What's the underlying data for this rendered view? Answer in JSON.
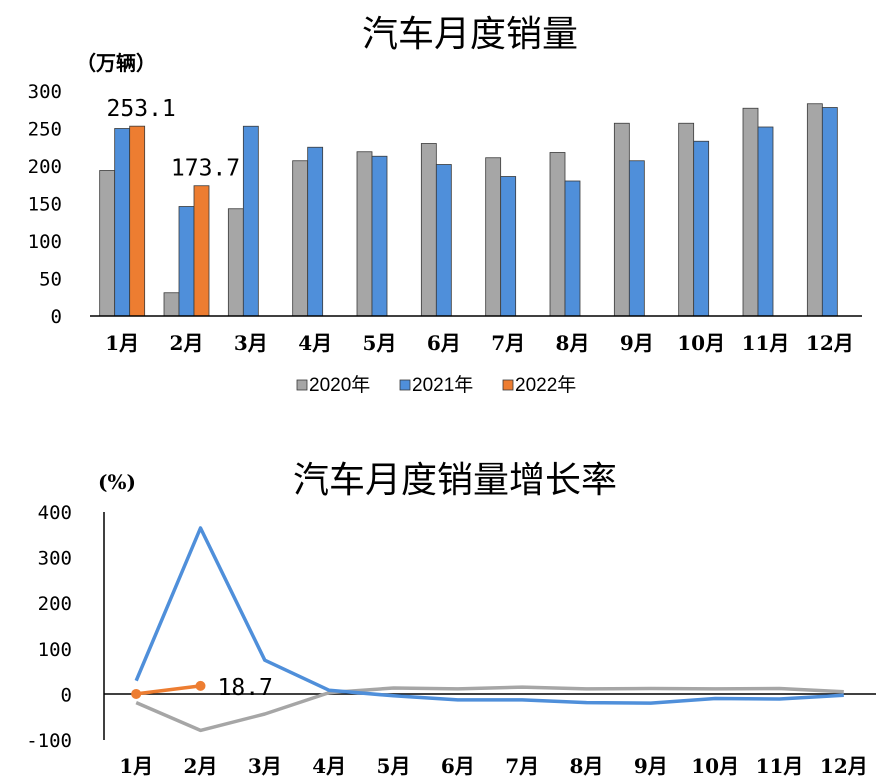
{
  "chart_data": [
    {
      "type": "bar",
      "title": "汽车月度销量",
      "ylabel": "（万辆）",
      "ylim": [
        0,
        300
      ],
      "yticks": [
        0,
        50,
        100,
        150,
        200,
        250,
        300
      ],
      "categories": [
        "1月",
        "2月",
        "3月",
        "4月",
        "5月",
        "6月",
        "7月",
        "8月",
        "9月",
        "10月",
        "11月",
        "12月"
      ],
      "series": [
        {
          "name": "2020年",
          "color": "#a6a6a6",
          "values": [
            194,
            31,
            143,
            207,
            219,
            230,
            211,
            218,
            257,
            257,
            277,
            283
          ]
        },
        {
          "name": "2021年",
          "color": "#4f8fda",
          "values": [
            250,
            146,
            253,
            225,
            213,
            202,
            186,
            180,
            207,
            233,
            252,
            278
          ]
        },
        {
          "name": "2022年",
          "color": "#ed7d31",
          "values": [
            253.1,
            173.7,
            null,
            null,
            null,
            null,
            null,
            null,
            null,
            null,
            null,
            null
          ]
        }
      ],
      "data_labels": [
        {
          "series": "2022年",
          "index": 0,
          "text": "253.1"
        },
        {
          "series": "2022年",
          "index": 1,
          "text": "173.7"
        }
      ],
      "legend": "bottom",
      "grid": false
    },
    {
      "type": "line",
      "title": "汽车月度销量增长率",
      "ylabel": "(%)",
      "ylim": [
        -100,
        400
      ],
      "yticks": [
        -100,
        0,
        100,
        200,
        300,
        400
      ],
      "categories": [
        "1月",
        "2月",
        "3月",
        "4月",
        "5月",
        "6月",
        "7月",
        "8月",
        "9月",
        "10月",
        "11月",
        "12月"
      ],
      "series": [
        {
          "name": "2020年",
          "color": "#a6a6a6",
          "values": [
            -18,
            -79,
            -43,
            4,
            14,
            12,
            16,
            12,
            13,
            12,
            13,
            6
          ]
        },
        {
          "name": "2021年",
          "color": "#4f8fda",
          "values": [
            30,
            365,
            75,
            9,
            -3,
            -12,
            -12,
            -18,
            -19,
            -9,
            -10,
            -2
          ]
        },
        {
          "name": "2022年",
          "color": "#ed7d31",
          "values": [
            1,
            18.7,
            null,
            null,
            null,
            null,
            null,
            null,
            null,
            null,
            null,
            null
          ]
        }
      ],
      "data_labels": [
        {
          "series": "2022年",
          "index": 1,
          "text": "18.7"
        }
      ],
      "grid": false
    }
  ]
}
